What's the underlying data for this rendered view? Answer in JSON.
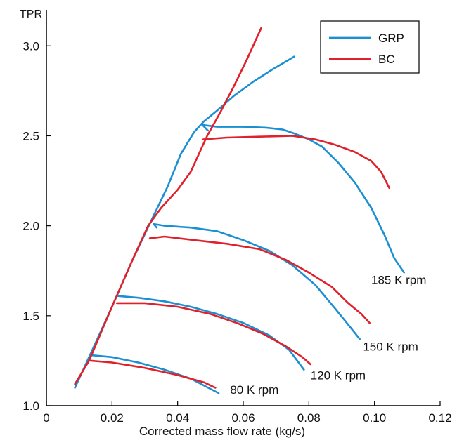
{
  "chart_data": {
    "type": "line",
    "title": "",
    "xlabel": "Corrected mass flow rate (kg/s)",
    "ylabel": "TPR",
    "xlim": [
      0,
      0.12
    ],
    "ylim": [
      1.0,
      3.2
    ],
    "xticks": [
      {
        "value": 0,
        "label": "0"
      },
      {
        "value": 0.02,
        "label": "0.02"
      },
      {
        "value": 0.04,
        "label": "0.04"
      },
      {
        "value": 0.06,
        "label": "0.06"
      },
      {
        "value": 0.08,
        "label": "0.08"
      },
      {
        "value": 0.1,
        "label": "0.10"
      },
      {
        "value": 0.12,
        "label": "0.12"
      }
    ],
    "yticks": [
      {
        "value": 1.0,
        "label": "1.0"
      },
      {
        "value": 1.5,
        "label": "1.5"
      },
      {
        "value": 2.0,
        "label": "2.0"
      },
      {
        "value": 2.5,
        "label": "2.5"
      },
      {
        "value": 3.0,
        "label": "3.0"
      }
    ],
    "grid": false,
    "legend_position": "top-right",
    "colors": {
      "GRP": "#1a8fd1",
      "BC": "#e0202a",
      "axis": "#000000"
    },
    "series": [
      {
        "name": "GRP",
        "color": "#1a8fd1",
        "lines": [
          [
            [
              0.0087,
              1.1
            ],
            [
              0.013,
              1.27
            ],
            [
              0.02,
              1.55
            ],
            [
              0.026,
              1.8
            ],
            [
              0.032,
              2.03
            ],
            [
              0.037,
              2.22
            ],
            [
              0.041,
              2.4
            ],
            [
              0.045,
              2.52
            ],
            [
              0.048,
              2.58
            ],
            [
              0.052,
              2.64
            ],
            [
              0.057,
              2.72
            ],
            [
              0.063,
              2.8
            ],
            [
              0.069,
              2.87
            ],
            [
              0.0755,
              2.94
            ]
          ],
          [
            [
              0.0492,
              2.53
            ],
            [
              0.0476,
              2.56
            ],
            [
              0.052,
              2.55
            ],
            [
              0.06,
              2.55
            ],
            [
              0.067,
              2.545
            ],
            [
              0.072,
              2.535
            ],
            [
              0.076,
              2.51
            ],
            [
              0.08,
              2.48
            ],
            [
              0.084,
              2.44
            ],
            [
              0.089,
              2.35
            ],
            [
              0.094,
              2.24
            ],
            [
              0.099,
              2.1
            ],
            [
              0.103,
              1.95
            ],
            [
              0.106,
              1.82
            ],
            [
              0.109,
              1.74
            ]
          ],
          [
            [
              0.0336,
              1.99
            ],
            [
              0.0327,
              2.01
            ],
            [
              0.036,
              2.0
            ],
            [
              0.044,
              1.99
            ],
            [
              0.052,
              1.97
            ],
            [
              0.06,
              1.92
            ],
            [
              0.068,
              1.86
            ],
            [
              0.075,
              1.78
            ],
            [
              0.082,
              1.67
            ],
            [
              0.088,
              1.54
            ],
            [
              0.092,
              1.45
            ],
            [
              0.0955,
              1.37
            ]
          ],
          [
            [
              0.0215,
              1.61
            ],
            [
              0.028,
              1.6
            ],
            [
              0.036,
              1.58
            ],
            [
              0.044,
              1.55
            ],
            [
              0.052,
              1.51
            ],
            [
              0.06,
              1.46
            ],
            [
              0.068,
              1.39
            ],
            [
              0.074,
              1.31
            ],
            [
              0.0785,
              1.2
            ]
          ],
          [
            [
              0.014,
              1.28
            ],
            [
              0.02,
              1.27
            ],
            [
              0.028,
              1.24
            ],
            [
              0.036,
              1.2
            ],
            [
              0.044,
              1.15
            ],
            [
              0.0525,
              1.07
            ]
          ]
        ]
      },
      {
        "name": "BC",
        "color": "#e0202a",
        "lines": [
          [
            [
              0.0087,
              1.12
            ],
            [
              0.013,
              1.25
            ],
            [
              0.02,
              1.55
            ],
            [
              0.026,
              1.8
            ],
            [
              0.031,
              2.0
            ],
            [
              0.035,
              2.1
            ],
            [
              0.04,
              2.2
            ],
            [
              0.044,
              2.3
            ],
            [
              0.047,
              2.42
            ],
            [
              0.049,
              2.5
            ],
            [
              0.053,
              2.63
            ],
            [
              0.057,
              2.77
            ],
            [
              0.061,
              2.92
            ],
            [
              0.0655,
              3.1
            ]
          ],
          [
            [
              0.0478,
              2.48
            ],
            [
              0.055,
              2.49
            ],
            [
              0.065,
              2.495
            ],
            [
              0.075,
              2.5
            ],
            [
              0.082,
              2.48
            ],
            [
              0.088,
              2.45
            ],
            [
              0.094,
              2.41
            ],
            [
              0.099,
              2.36
            ],
            [
              0.102,
              2.3
            ],
            [
              0.1045,
              2.21
            ]
          ],
          [
            [
              0.0315,
              1.93
            ],
            [
              0.036,
              1.94
            ],
            [
              0.045,
              1.92
            ],
            [
              0.055,
              1.9
            ],
            [
              0.065,
              1.87
            ],
            [
              0.073,
              1.81
            ],
            [
              0.08,
              1.74
            ],
            [
              0.087,
              1.66
            ],
            [
              0.092,
              1.57
            ],
            [
              0.096,
              1.51
            ],
            [
              0.0985,
              1.46
            ]
          ],
          [
            [
              0.0215,
              1.57
            ],
            [
              0.03,
              1.57
            ],
            [
              0.04,
              1.55
            ],
            [
              0.05,
              1.51
            ],
            [
              0.058,
              1.46
            ],
            [
              0.066,
              1.4
            ],
            [
              0.073,
              1.33
            ],
            [
              0.078,
              1.27
            ],
            [
              0.0805,
              1.23
            ]
          ],
          [
            [
              0.0135,
              1.25
            ],
            [
              0.02,
              1.24
            ],
            [
              0.03,
              1.21
            ],
            [
              0.04,
              1.17
            ],
            [
              0.048,
              1.13
            ],
            [
              0.0515,
              1.1
            ]
          ]
        ]
      }
    ],
    "annotations": [
      {
        "text": "185 K rpm",
        "x": 0.099,
        "y": 1.7
      },
      {
        "text": "150 K rpm",
        "x": 0.0965,
        "y": 1.33
      },
      {
        "text": "120 K rpm",
        "x": 0.0805,
        "y": 1.17
      },
      {
        "text": "80 K rpm",
        "x": 0.056,
        "y": 1.09
      }
    ]
  }
}
